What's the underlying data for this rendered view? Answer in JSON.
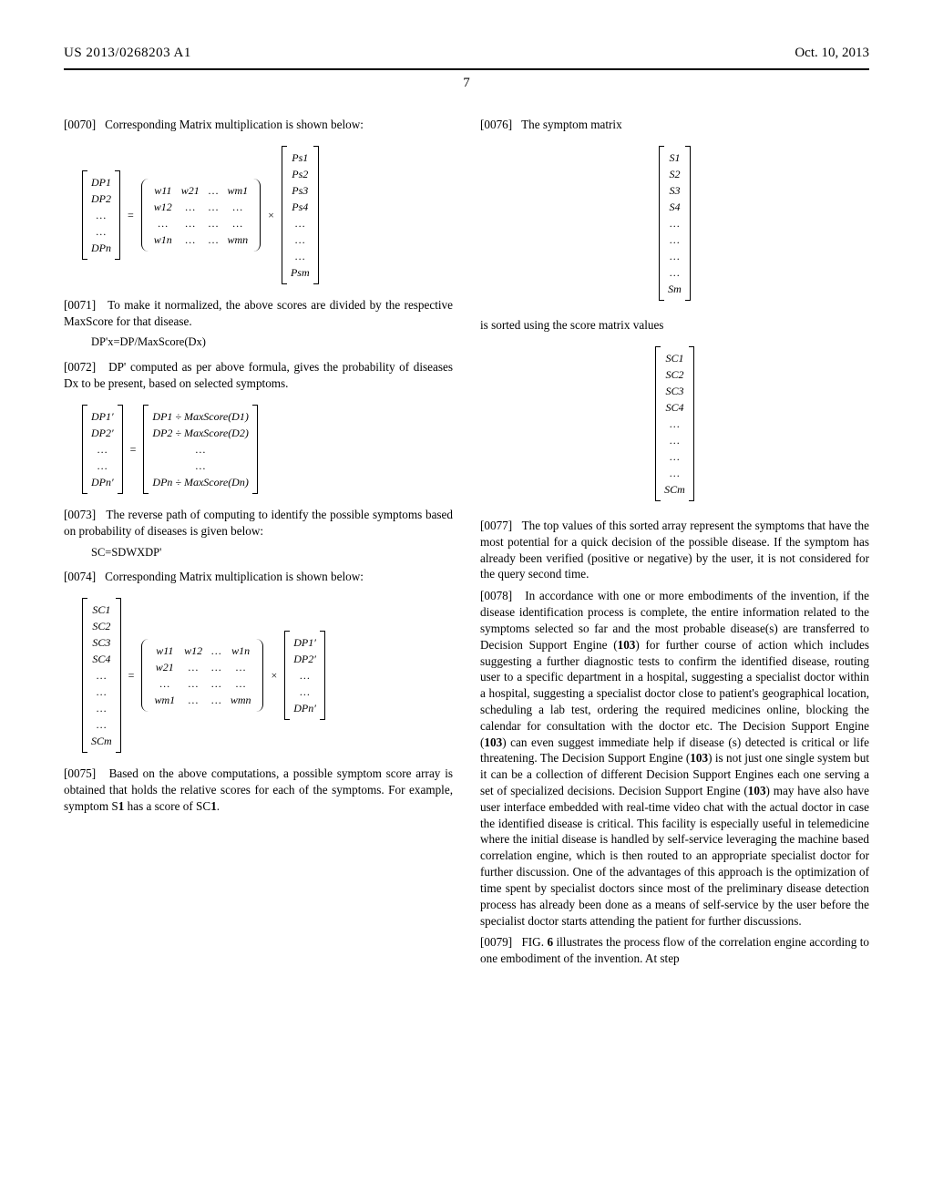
{
  "header": {
    "left": "US 2013/0268203 A1",
    "right": "Oct. 10, 2013",
    "page_number": "7"
  },
  "left_col": {
    "p0070": {
      "num": "[0070]",
      "text": "Corresponding Matrix multiplication is shown below:"
    },
    "matrix1": {
      "dp_col": [
        "DP1",
        "DP2",
        "…",
        "…",
        "DPn"
      ],
      "w_grid": [
        [
          "w11",
          "w21",
          "…",
          "wm1"
        ],
        [
          "w12",
          "…",
          "…",
          "…"
        ],
        [
          "…",
          "…",
          "…",
          "…"
        ],
        [
          "w1n",
          "…",
          "…",
          "wmn"
        ]
      ],
      "ps_col": [
        "Ps1",
        "Ps2",
        "Ps3",
        "Ps4",
        "…",
        "…",
        "…",
        "Psm"
      ]
    },
    "p0071": {
      "num": "[0071]",
      "text": "To make it normalized, the above scores are divided by the respective MaxScore for that disease."
    },
    "formula1": "DP'x=DP/MaxScore(Dx)",
    "p0072_a": "[0072]",
    "p0072_b": "DP' computed as per above formula, gives the probability of diseases Dx to be present, based on selected symptoms.",
    "matrix2": {
      "left_col": [
        "DP1′",
        "DP2′",
        "…",
        "…",
        "DPn′"
      ],
      "right_col": [
        "DP1 ÷ MaxScore(D1)",
        "DP2 ÷ MaxScore(D2)",
        "…",
        "…",
        "DPn ÷ MaxScore(Dn)"
      ]
    },
    "p0073": {
      "num": "[0073]",
      "text": "The reverse path of computing to identify the possible symptoms based on probability of diseases is given below:"
    },
    "formula2": "SC=SDWXDP'",
    "p0074": {
      "num": "[0074]",
      "text": "Corresponding Matrix multiplication is shown below:"
    },
    "matrix3": {
      "sc_col": [
        "SC1",
        "SC2",
        "SC3",
        "SC4",
        "…",
        "…",
        "…",
        "…",
        "SCm"
      ],
      "w_grid": [
        [
          "w11",
          "w12",
          "…",
          "w1n"
        ],
        [
          "w21",
          "…",
          "…",
          "…"
        ],
        [
          "…",
          "…",
          "…",
          "…"
        ],
        [
          "wm1",
          "…",
          "…",
          "wmn"
        ]
      ],
      "dp_col": [
        "DP1′",
        "DP2′",
        "…",
        "…",
        "DPn′"
      ]
    },
    "p0075_a": "[0075]",
    "p0075_b": "Based on the above computations, a possible symptom score array is obtained that holds the relative scores for each of the symptoms. For example, symptom S",
    "p0075_c": "1",
    "p0075_d": " has a score of SC",
    "p0075_e": "1",
    "p0075_f": "."
  },
  "right_col": {
    "p0076": {
      "num": "[0076]",
      "text": "The symptom matrix"
    },
    "s_matrix": [
      "S1",
      "S2",
      "S3",
      "S4",
      "…",
      "…",
      "…",
      "…",
      "Sm"
    ],
    "sorted_text": "is sorted using the score matrix values",
    "sc_matrix": [
      "SC1",
      "SC2",
      "SC3",
      "SC4",
      "…",
      "…",
      "…",
      "…",
      "SCm"
    ],
    "p0077": {
      "num": "[0077]",
      "text": "The top values of this sorted array represent the symptoms that have the most potential for a quick decision of the possible disease. If the symptom has already been verified (positive or negative) by the user, it is not considered for the query second time."
    },
    "p0078_a": "[0078]",
    "p0078_b": "In accordance with one or more embodiments of the invention, if the disease identification process is complete, the entire information related to the symptoms selected so far and the most probable disease(s) are transferred to Decision Support Engine (",
    "p0078_c": "103",
    "p0078_d": ") for further course of action which includes suggesting a further diagnostic tests to confirm the identified disease, routing user to a specific department in a hospital, suggesting a specialist doctor within a hospital, suggesting a specialist doctor close to patient's geographical location, scheduling a lab test, ordering the required medicines online, blocking the calendar for consultation with the doctor etc. The Decision Support Engine (",
    "p0078_e": "103",
    "p0078_f": ") can even suggest immediate help if disease (s) detected is critical or life threatening. The Decision Support Engine (",
    "p0078_g": "103",
    "p0078_h": ") is not just one single system but it can be a collection of different Decision Support Engines each one serving a set of specialized decisions. Decision Support Engine (",
    "p0078_i": "103",
    "p0078_j": ") may have also have user interface embedded with real-time video chat with the actual doctor in case the identified disease is critical. This facility is especially useful in telemedicine where the initial disease is handled by self-service leveraging the machine based correlation engine, which is then routed to an appropriate specialist doctor for further discussion. One of the advantages of this approach is the optimization of time spent by specialist doctors since most of the preliminary disease detection process has already been done as a means of self-service by the user before the specialist doctor starts attending the patient for further discussions.",
    "p0079_a": "[0079]",
    "p0079_b": "FIG. ",
    "p0079_c": "6",
    "p0079_d": " illustrates the process flow of the correlation engine according to one embodiment of the invention. At step"
  }
}
